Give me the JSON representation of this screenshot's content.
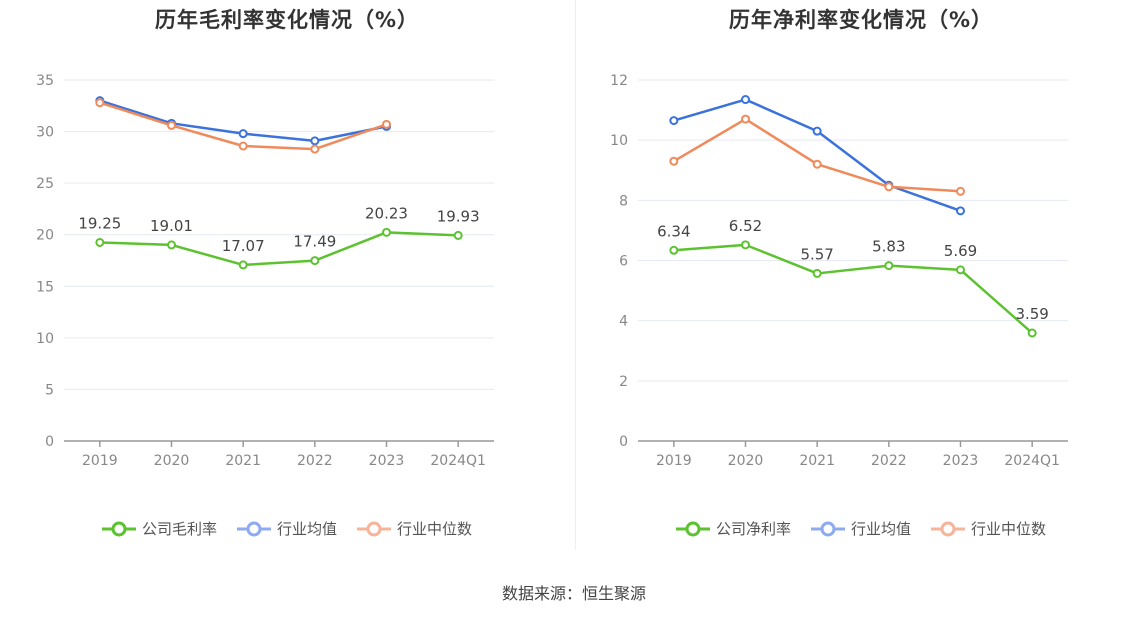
{
  "chart_data": [
    {
      "type": "line",
      "title": "历年毛利率变化情况（%）",
      "categories": [
        "2019",
        "2020",
        "2021",
        "2022",
        "2023",
        "2024Q1"
      ],
      "ylim": [
        0,
        35
      ],
      "yticks": [
        0,
        5,
        10,
        15,
        20,
        25,
        30,
        35
      ],
      "grid": true,
      "legend_position": "bottom",
      "series": [
        {
          "name": "公司毛利率",
          "color": "#5cc230",
          "values": [
            19.25,
            19.01,
            17.07,
            17.49,
            20.23,
            19.93
          ],
          "labels": [
            "19.25",
            "19.01",
            "17.07",
            "17.49",
            "20.23",
            "19.93"
          ]
        },
        {
          "name": "行业均值",
          "color": "#3b72dc",
          "values": [
            33.0,
            30.8,
            29.8,
            29.1,
            30.5,
            null
          ]
        },
        {
          "name": "行业中位数",
          "color": "#f08a5a",
          "values": [
            32.8,
            30.6,
            28.6,
            28.3,
            30.7,
            null
          ]
        }
      ]
    },
    {
      "type": "line",
      "title": "历年净利率变化情况（%）",
      "categories": [
        "2019",
        "2020",
        "2021",
        "2022",
        "2023",
        "2024Q1"
      ],
      "ylim": [
        0,
        12
      ],
      "yticks": [
        0,
        2,
        4,
        6,
        8,
        10,
        12
      ],
      "grid": true,
      "legend_position": "bottom",
      "series": [
        {
          "name": "公司净利率",
          "color": "#5cc230",
          "values": [
            6.34,
            6.52,
            5.57,
            5.83,
            5.69,
            3.59
          ],
          "labels": [
            "6.34",
            "6.52",
            "5.57",
            "5.83",
            "5.69",
            "3.59"
          ]
        },
        {
          "name": "行业均值",
          "color": "#3b72dc",
          "values": [
            10.65,
            11.35,
            10.3,
            8.5,
            7.65,
            null
          ]
        },
        {
          "name": "行业中位数",
          "color": "#f08a5a",
          "values": [
            9.3,
            10.7,
            9.2,
            8.45,
            8.3,
            null
          ]
        }
      ]
    }
  ],
  "legend_colors": {
    "company": "#5cc230",
    "industry_avg": "#8eaaf0",
    "industry_median": "#f7b49a"
  },
  "footer": {
    "source": "数据来源：恒生聚源"
  }
}
